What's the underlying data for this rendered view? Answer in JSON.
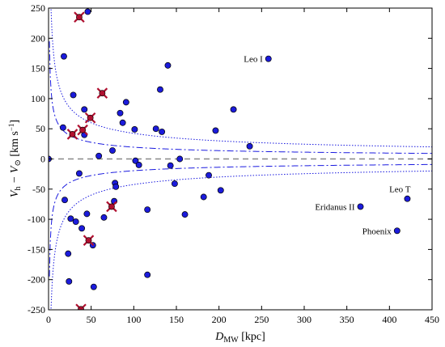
{
  "chart_data": {
    "type": "scatter",
    "xlabel_main": "D",
    "xlabel_sub": "MW",
    "xlabel_unit": " [kpc]",
    "ylabel_main": "V",
    "ylabel_sub1": "h",
    "ylabel_mid": " − V",
    "ylabel_sub2": "⊙",
    "ylabel_unit": " [km s",
    "ylabel_exp": "−1",
    "ylabel_close": "]",
    "xlim": [
      0,
      450
    ],
    "ylim": [
      -250,
      250
    ],
    "xticks": [
      0,
      50,
      100,
      150,
      200,
      250,
      300,
      350,
      400,
      450
    ],
    "yticks": [
      -250,
      -200,
      -150,
      -100,
      -50,
      0,
      50,
      100,
      150,
      200,
      250
    ],
    "grid": false,
    "zero_line": {
      "y": 0,
      "style": "dashed",
      "color": "#888888"
    },
    "curves": [
      {
        "style": "dashdot",
        "color": "#1a1adf",
        "k": 6.16
      },
      {
        "style": "dotted",
        "color": "#1a1adf",
        "k": 13.4
      }
    ],
    "marker_color": "#1b1bdb",
    "cross_color": "#b01030",
    "series": [
      {
        "marker": "circle",
        "points": [
          [
            0,
            0
          ],
          [
            17,
            52
          ],
          [
            18,
            170
          ],
          [
            19,
            -68
          ],
          [
            23,
            -157
          ],
          [
            24,
            -203
          ],
          [
            26,
            -99
          ],
          [
            29,
            106
          ],
          [
            32,
            -104
          ],
          [
            36,
            -24
          ],
          [
            39,
            -115
          ],
          [
            42,
            82
          ],
          [
            42,
            40
          ],
          [
            45,
            -91
          ],
          [
            46,
            244
          ],
          [
            52,
            -143
          ],
          [
            53,
            -212
          ],
          [
            59,
            5
          ],
          [
            65,
            -97
          ],
          [
            75,
            14
          ],
          [
            77,
            -70
          ],
          [
            78,
            -40
          ],
          [
            79,
            -46
          ],
          [
            84,
            76
          ],
          [
            87,
            60
          ],
          [
            91,
            94
          ],
          [
            101,
            49
          ],
          [
            102,
            -3
          ],
          [
            106,
            -10
          ],
          [
            116,
            -84
          ],
          [
            116,
            -192
          ],
          [
            126,
            50
          ],
          [
            131,
            115
          ],
          [
            133,
            45
          ],
          [
            140,
            155
          ],
          [
            143,
            -11
          ],
          [
            148,
            -41
          ],
          [
            154,
            0
          ],
          [
            160,
            -92
          ],
          [
            182,
            -63
          ],
          [
            188,
            -27
          ],
          [
            196,
            47
          ],
          [
            202,
            -52
          ],
          [
            217,
            82
          ],
          [
            236,
            21
          ],
          [
            258,
            166
          ],
          [
            366,
            -79
          ],
          [
            409,
            -119
          ],
          [
            421,
            -66
          ]
        ]
      },
      {
        "marker": "circle-cross",
        "points": [
          [
            36,
            235
          ],
          [
            38,
            -249
          ],
          [
            40,
            48
          ],
          [
            47,
            -135
          ],
          [
            49,
            68
          ],
          [
            28,
            41
          ],
          [
            63,
            109
          ],
          [
            74,
            -79
          ]
        ]
      }
    ],
    "annotations": [
      {
        "text": "Leo I",
        "x": 258,
        "y": 166,
        "anchor": "end"
      },
      {
        "text": "Eridanus II",
        "x": 366,
        "y": -79,
        "anchor": "end"
      },
      {
        "text": "Phoenix",
        "x": 409,
        "y": -119,
        "anchor": "end"
      },
      {
        "text": "Leo T",
        "x": 421,
        "y": -66,
        "anchor": "end-above"
      }
    ]
  }
}
